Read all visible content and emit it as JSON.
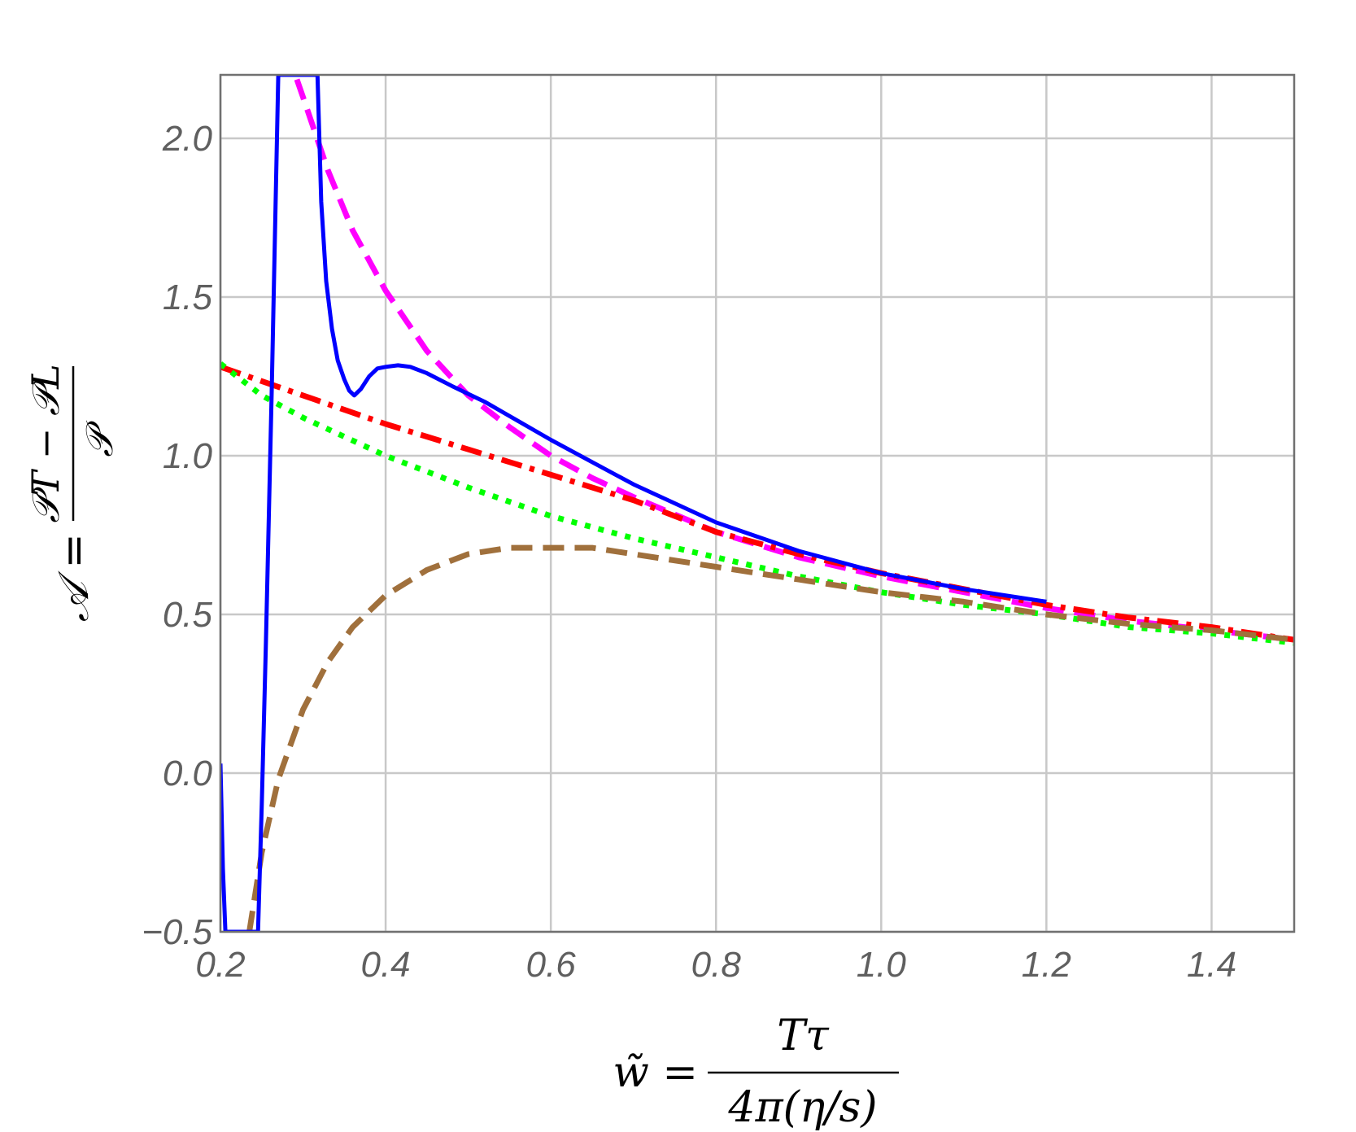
{
  "chart_data": {
    "type": "line",
    "title": "",
    "xlabel": "w̃ = Tτ / 4π(η/s)",
    "ylabel": "𝒜 = (𝒫_T − 𝒫_L) / 𝒫",
    "xlabel_parts": {
      "lhs": "w̃ =",
      "num": "Tτ",
      "den": "4π(η/s)"
    },
    "ylabel_parts": {
      "lhs": "𝒜 =",
      "num": "𝒫T − 𝒫L",
      "den": "𝒫"
    },
    "xlim": [
      0.2,
      1.5
    ],
    "ylim": [
      -0.5,
      2.2
    ],
    "xticks": [
      0.2,
      0.4,
      0.6,
      0.8,
      1.0,
      1.2,
      1.4
    ],
    "xtick_labels": [
      "0.2",
      "0.4",
      "0.6",
      "0.8",
      "1.0",
      "1.2",
      "1.4"
    ],
    "yticks": [
      -0.5,
      0.0,
      0.5,
      1.0,
      1.5,
      2.0
    ],
    "ytick_labels": [
      "−0.5",
      "0.0",
      "0.5",
      "1.0",
      "1.5",
      "2.0"
    ],
    "grid": true,
    "legend": "none",
    "series": [
      {
        "color": "#ff00ff",
        "dash": "dashed",
        "x": [
          0.28,
          0.3,
          0.33,
          0.36,
          0.4,
          0.45,
          0.5,
          0.55,
          0.6,
          0.65,
          0.7,
          0.8,
          0.9,
          1.0,
          1.1,
          1.2,
          1.3,
          1.4,
          1.5
        ],
        "y": [
          2.28,
          2.13,
          1.9,
          1.71,
          1.52,
          1.33,
          1.19,
          1.09,
          1.0,
          0.93,
          0.87,
          0.76,
          0.68,
          0.62,
          0.57,
          0.52,
          0.48,
          0.45,
          0.42
        ]
      },
      {
        "color": "#ff0000",
        "dash": "dashdot",
        "x": [
          0.2,
          0.3,
          0.4,
          0.5,
          0.6,
          0.7,
          0.8,
          0.9,
          1.0,
          1.1,
          1.2,
          1.3,
          1.4,
          1.5
        ],
        "y": [
          1.28,
          1.19,
          1.1,
          1.02,
          0.94,
          0.86,
          0.76,
          0.69,
          0.63,
          0.58,
          0.53,
          0.49,
          0.46,
          0.42
        ]
      },
      {
        "color": "#00ff00",
        "dash": "dotted",
        "x": [
          0.2,
          0.25,
          0.3,
          0.4,
          0.5,
          0.6,
          0.7,
          0.8,
          0.9,
          1.0,
          1.1,
          1.2,
          1.3,
          1.4,
          1.5
        ],
        "y": [
          1.29,
          1.19,
          1.12,
          1.0,
          0.9,
          0.81,
          0.74,
          0.68,
          0.62,
          0.57,
          0.53,
          0.5,
          0.46,
          0.44,
          0.41
        ]
      },
      {
        "color": "#a0703c",
        "dash": "dashed",
        "x": [
          0.235,
          0.25,
          0.27,
          0.3,
          0.33,
          0.36,
          0.4,
          0.45,
          0.5,
          0.55,
          0.6,
          0.65,
          0.7,
          0.8,
          0.9,
          1.0,
          1.1,
          1.2,
          1.3,
          1.4,
          1.5
        ],
        "y": [
          -0.5,
          -0.25,
          -0.02,
          0.2,
          0.35,
          0.46,
          0.56,
          0.64,
          0.69,
          0.71,
          0.71,
          0.71,
          0.69,
          0.65,
          0.61,
          0.57,
          0.54,
          0.5,
          0.47,
          0.45,
          0.42
        ]
      },
      {
        "color": "#0000ff",
        "dash": "solid",
        "x": [
          0.2,
          0.203,
          0.206,
          0.2455,
          0.25,
          0.255,
          0.262,
          0.27,
          0.3175,
          0.322,
          0.328,
          0.335,
          0.342,
          0.35,
          0.356,
          0.362,
          0.37,
          0.38,
          0.39,
          0.4,
          0.415,
          0.43,
          0.45,
          0.48,
          0.52,
          0.56,
          0.6,
          0.65,
          0.7,
          0.75,
          0.8,
          0.9,
          1.0,
          1.1,
          1.2
        ],
        "y": [
          0.03,
          -0.3,
          -0.5,
          -0.5,
          -0.1,
          0.4,
          1.2,
          2.2,
          2.2,
          1.8,
          1.55,
          1.4,
          1.3,
          1.24,
          1.205,
          1.19,
          1.21,
          1.25,
          1.275,
          1.28,
          1.285,
          1.28,
          1.26,
          1.22,
          1.17,
          1.11,
          1.05,
          0.98,
          0.91,
          0.85,
          0.79,
          0.7,
          0.63,
          0.58,
          0.54
        ]
      }
    ]
  }
}
